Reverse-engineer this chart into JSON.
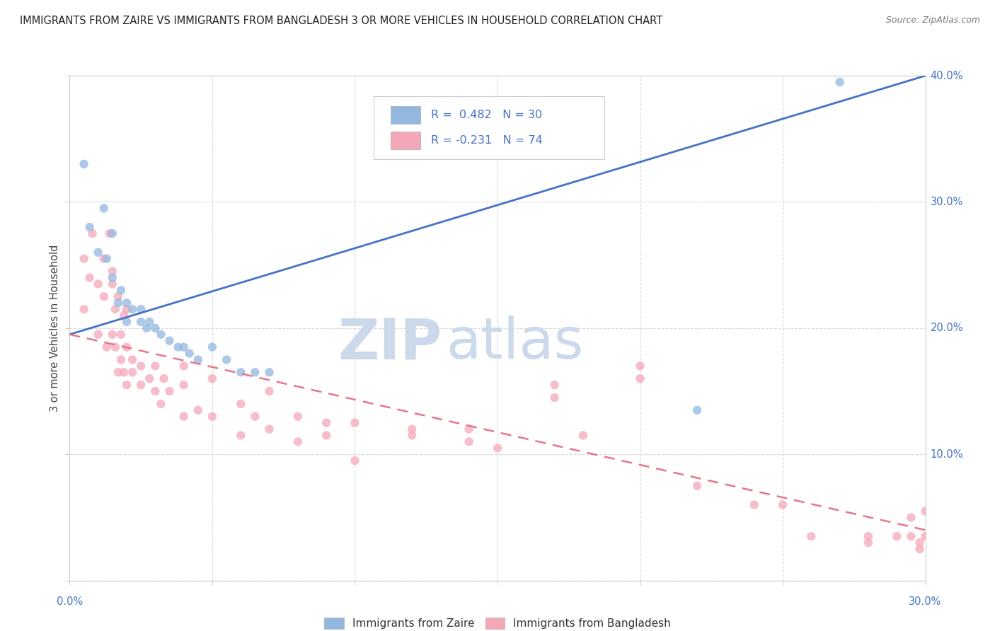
{
  "title": "IMMIGRANTS FROM ZAIRE VS IMMIGRANTS FROM BANGLADESH 3 OR MORE VEHICLES IN HOUSEHOLD CORRELATION CHART",
  "source": "Source: ZipAtlas.com",
  "ylabel_label": "3 or more Vehicles in Household",
  "xlim": [
    0.0,
    0.3
  ],
  "ylim": [
    0.0,
    0.4
  ],
  "yticks": [
    0.0,
    0.1,
    0.2,
    0.3,
    0.4
  ],
  "xticks": [
    0.0,
    0.05,
    0.1,
    0.15,
    0.2,
    0.25,
    0.3
  ],
  "legend_r1": "R =  0.482",
  "legend_n1": "N = 30",
  "legend_r2": "R = -0.231",
  "legend_n2": "N = 74",
  "color_zaire": "#93b8e0",
  "color_bangladesh": "#f4a7b9",
  "line_color_zaire": "#4472c4",
  "line_color_bangladesh": "#e8748a",
  "watermark_zip": "ZIP",
  "watermark_atlas": "atlas",
  "watermark_color": "#ccd9ea",
  "legend_label1": "Immigrants from Zaire",
  "legend_label2": "Immigrants from Bangladesh",
  "zaire_x": [
    0.005,
    0.007,
    0.01,
    0.012,
    0.013,
    0.015,
    0.015,
    0.017,
    0.018,
    0.02,
    0.02,
    0.022,
    0.025,
    0.025,
    0.027,
    0.028,
    0.03,
    0.032,
    0.035,
    0.038,
    0.04,
    0.042,
    0.045,
    0.05,
    0.055,
    0.06,
    0.065,
    0.07,
    0.22,
    0.27
  ],
  "zaire_y": [
    0.33,
    0.28,
    0.26,
    0.295,
    0.255,
    0.24,
    0.275,
    0.22,
    0.23,
    0.205,
    0.22,
    0.215,
    0.205,
    0.215,
    0.2,
    0.205,
    0.2,
    0.195,
    0.19,
    0.185,
    0.185,
    0.18,
    0.175,
    0.185,
    0.175,
    0.165,
    0.165,
    0.165,
    0.135,
    0.395
  ],
  "bangladesh_x": [
    0.005,
    0.005,
    0.007,
    0.008,
    0.01,
    0.01,
    0.012,
    0.012,
    0.013,
    0.014,
    0.015,
    0.015,
    0.015,
    0.016,
    0.016,
    0.017,
    0.017,
    0.018,
    0.018,
    0.019,
    0.019,
    0.02,
    0.02,
    0.02,
    0.022,
    0.022,
    0.025,
    0.025,
    0.028,
    0.03,
    0.03,
    0.032,
    0.033,
    0.035,
    0.04,
    0.04,
    0.04,
    0.045,
    0.05,
    0.05,
    0.06,
    0.06,
    0.065,
    0.07,
    0.07,
    0.08,
    0.08,
    0.09,
    0.09,
    0.1,
    0.1,
    0.12,
    0.12,
    0.14,
    0.14,
    0.15,
    0.17,
    0.17,
    0.18,
    0.2,
    0.2,
    0.22,
    0.24,
    0.25,
    0.26,
    0.28,
    0.28,
    0.29,
    0.295,
    0.295,
    0.298,
    0.298,
    0.3,
    0.3
  ],
  "bangladesh_y": [
    0.215,
    0.255,
    0.24,
    0.275,
    0.195,
    0.235,
    0.225,
    0.255,
    0.185,
    0.275,
    0.245,
    0.195,
    0.235,
    0.185,
    0.215,
    0.165,
    0.225,
    0.175,
    0.195,
    0.165,
    0.21,
    0.185,
    0.155,
    0.215,
    0.165,
    0.175,
    0.17,
    0.155,
    0.16,
    0.15,
    0.17,
    0.14,
    0.16,
    0.15,
    0.13,
    0.155,
    0.17,
    0.135,
    0.13,
    0.16,
    0.115,
    0.14,
    0.13,
    0.15,
    0.12,
    0.13,
    0.11,
    0.115,
    0.125,
    0.095,
    0.125,
    0.115,
    0.12,
    0.11,
    0.12,
    0.105,
    0.145,
    0.155,
    0.115,
    0.17,
    0.16,
    0.075,
    0.06,
    0.06,
    0.035,
    0.035,
    0.03,
    0.035,
    0.035,
    0.05,
    0.03,
    0.025,
    0.035,
    0.055
  ],
  "background_color": "#ffffff",
  "grid_color": "#d8d8d8",
  "tick_label_color": "#4472c4",
  "axis_color": "#cccccc"
}
